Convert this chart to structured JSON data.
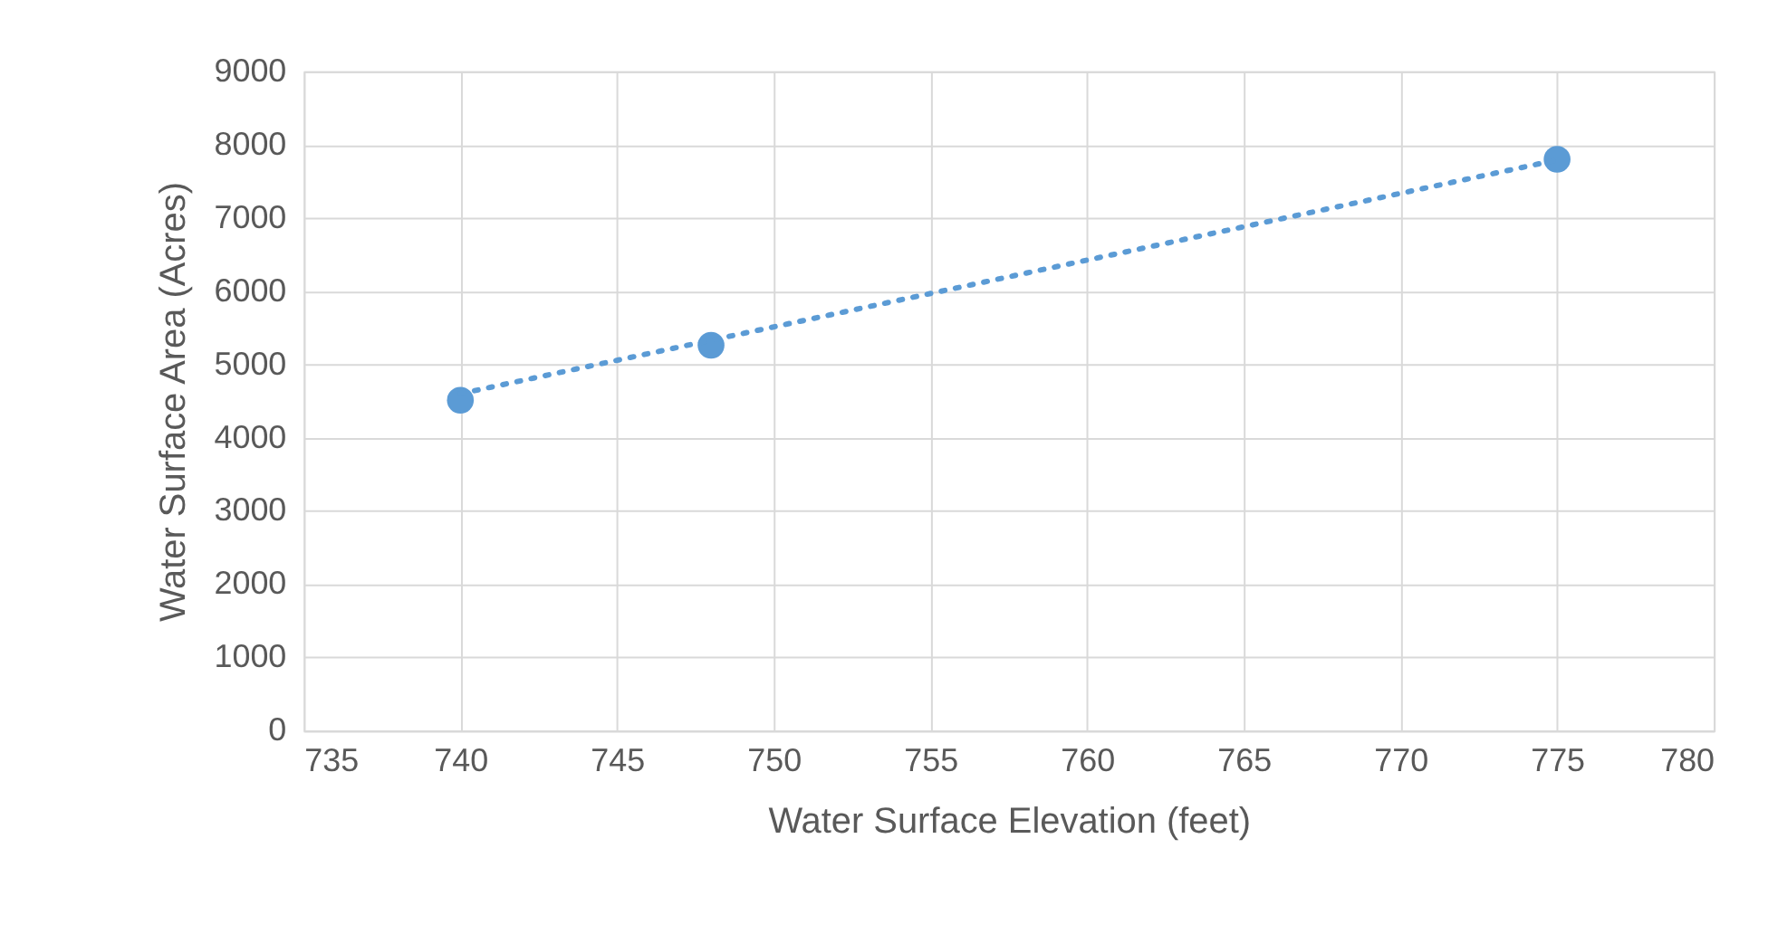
{
  "chart_data": {
    "type": "scatter",
    "xlabel": "Water Surface Elevation (feet)",
    "ylabel": "Water Surface Area (Acres)",
    "x": [
      740,
      748,
      775
    ],
    "series": [
      {
        "color": "#5b9bd5",
        "values": [
          4510,
          5260,
          7800
        ],
        "marker": "circle"
      },
      {
        "type": "line",
        "color": "#5b9bd5",
        "x": [
          740,
          775
        ],
        "values": [
          4600,
          7790
        ],
        "line_style": "dotted",
        "marker": "none"
      }
    ],
    "xlim": [
      735,
      780
    ],
    "xticks": [
      735,
      740,
      745,
      750,
      755,
      760,
      765,
      770,
      775,
      780
    ],
    "ylim": [
      0,
      9000
    ],
    "yticks": [
      0,
      1000,
      2000,
      3000,
      4000,
      5000,
      6000,
      7000,
      8000,
      9000
    ],
    "grid": true
  }
}
